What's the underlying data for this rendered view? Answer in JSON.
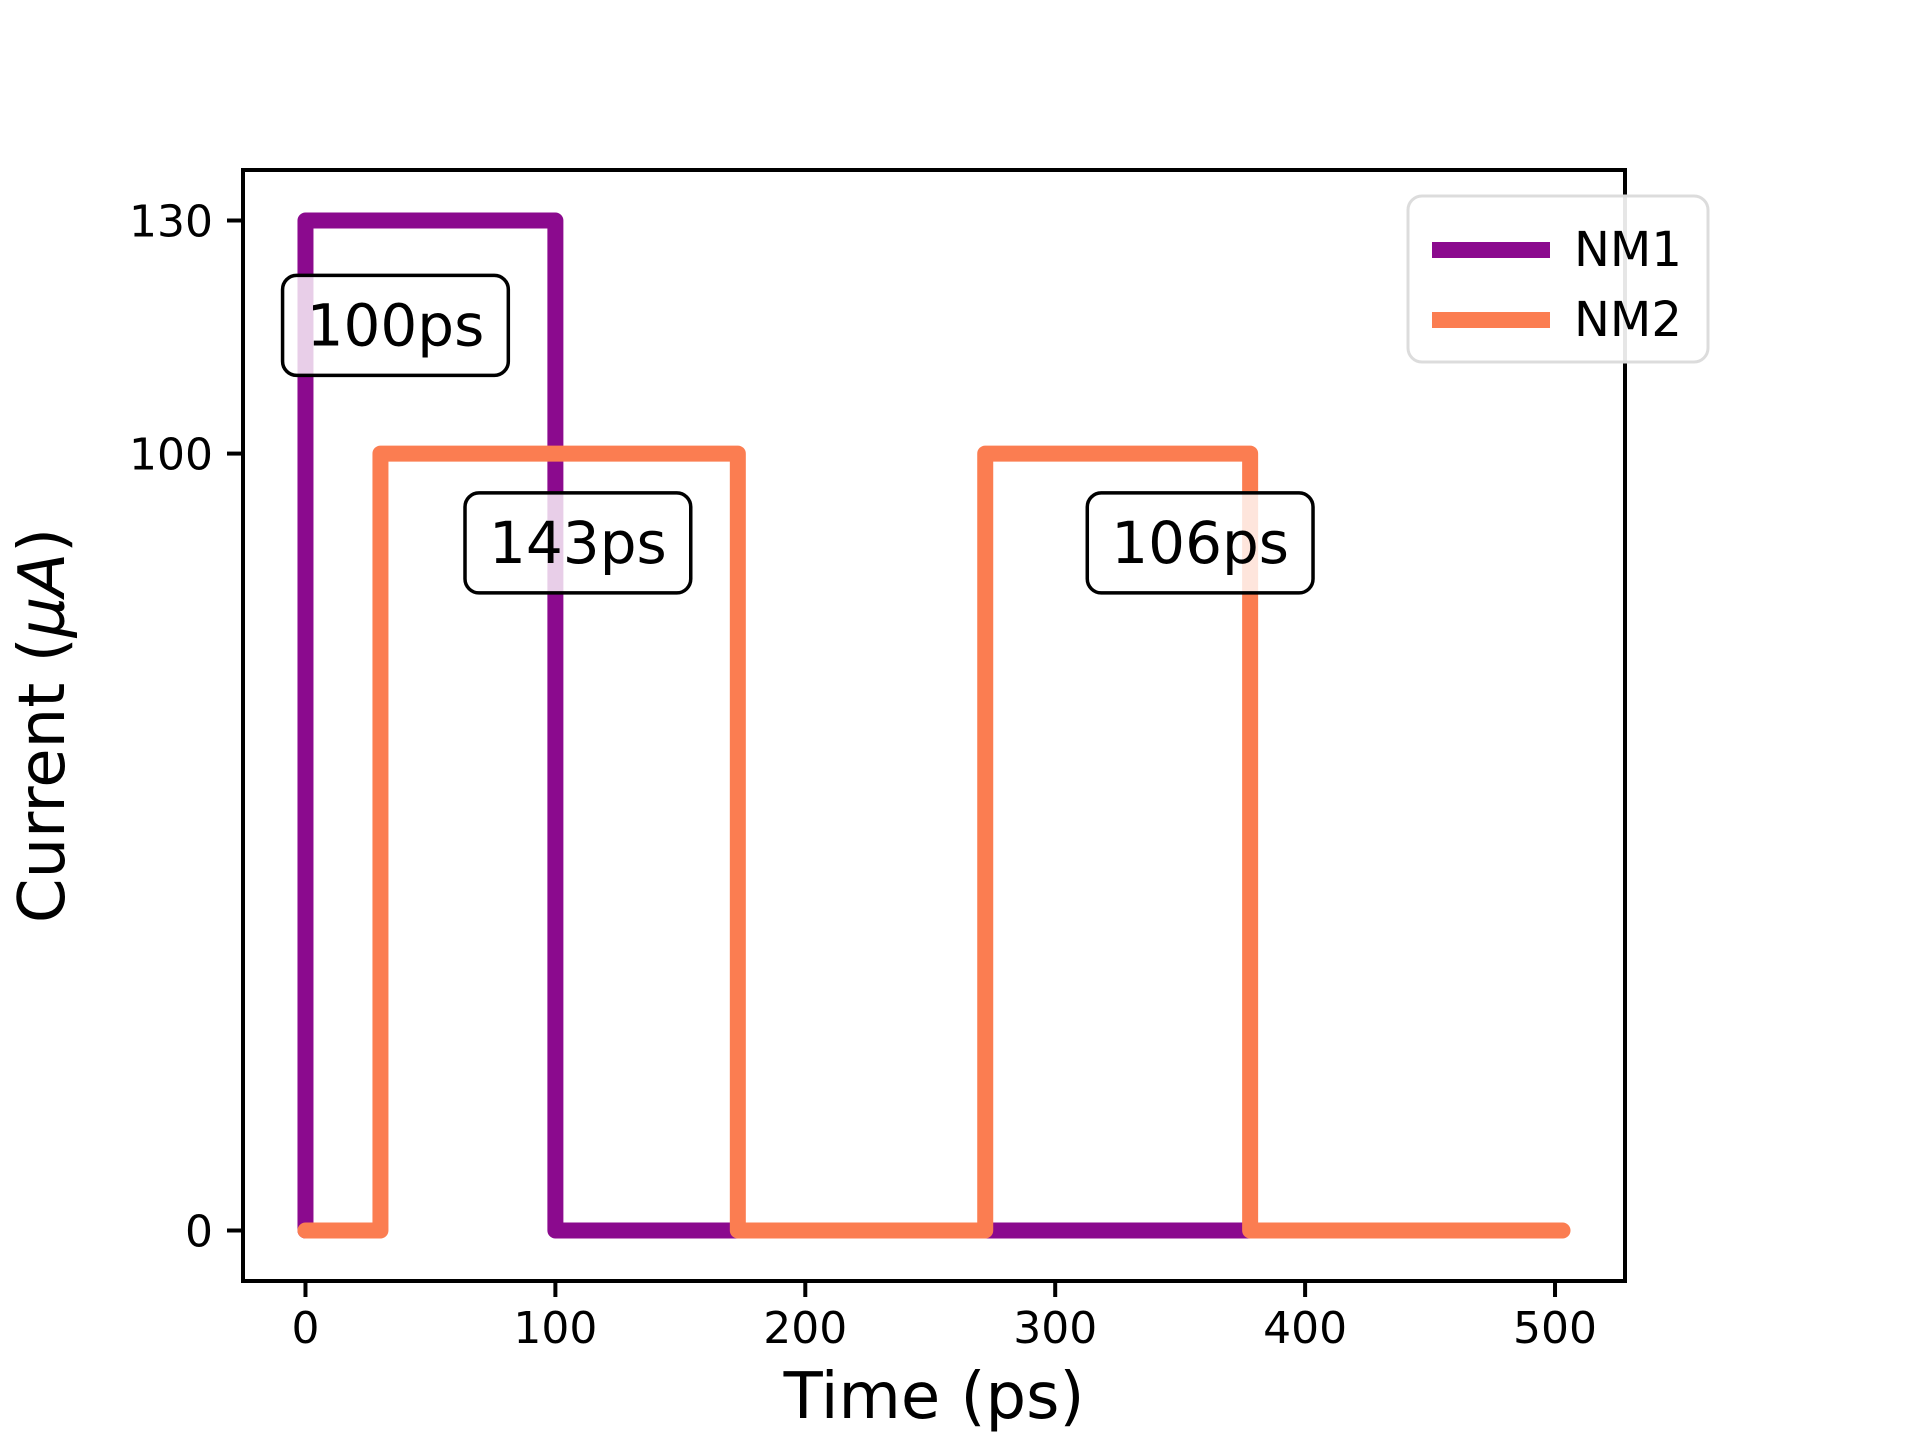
{
  "figure": {
    "background": "#ffffff"
  },
  "chart_data": {
    "type": "line",
    "title": "",
    "xlabel": "Time (ps)",
    "ylabel": "Current (µA)",
    "ylabel_italic_part": "µA",
    "xlim": [
      -25,
      528
    ],
    "ylim": [
      -6.5,
      136.5
    ],
    "x_ticks": [
      0,
      100,
      200,
      300,
      400,
      500
    ],
    "y_ticks": [
      0,
      100,
      130
    ],
    "grid": false,
    "legend": {
      "position": "upper right",
      "entries": [
        "NM1",
        "NM2"
      ]
    },
    "series": [
      {
        "name": "NM1",
        "color": "#8B0A8E",
        "points": [
          [
            0,
            0
          ],
          [
            0,
            130
          ],
          [
            100,
            130
          ],
          [
            100,
            0
          ],
          [
            378,
            0
          ]
        ]
      },
      {
        "name": "NM2",
        "color": "#FB7D51",
        "points": [
          [
            0,
            0
          ],
          [
            30,
            0
          ],
          [
            30,
            100
          ],
          [
            173,
            100
          ],
          [
            173,
            0
          ],
          [
            272,
            0
          ],
          [
            272,
            100
          ],
          [
            378,
            100
          ],
          [
            378,
            0
          ],
          [
            503,
            0
          ]
        ]
      }
    ],
    "annotations": [
      {
        "text": "100ps",
        "x": 36,
        "y": 116.5
      },
      {
        "text": "143ps",
        "x": 109,
        "y": 88.5
      },
      {
        "text": "106ps",
        "x": 358,
        "y": 88.5
      }
    ],
    "pulse_widths_ps": {
      "NM1": [
        100
      ],
      "NM2": [
        143,
        106
      ]
    },
    "amplitudes_uA": {
      "NM1": 130,
      "NM2": 100
    },
    "style": {
      "frame_color": "#000000",
      "legend_border": "#dcdcdc",
      "annotation_box_fill": "#ffffff",
      "annotation_box_border": "#000000"
    }
  }
}
